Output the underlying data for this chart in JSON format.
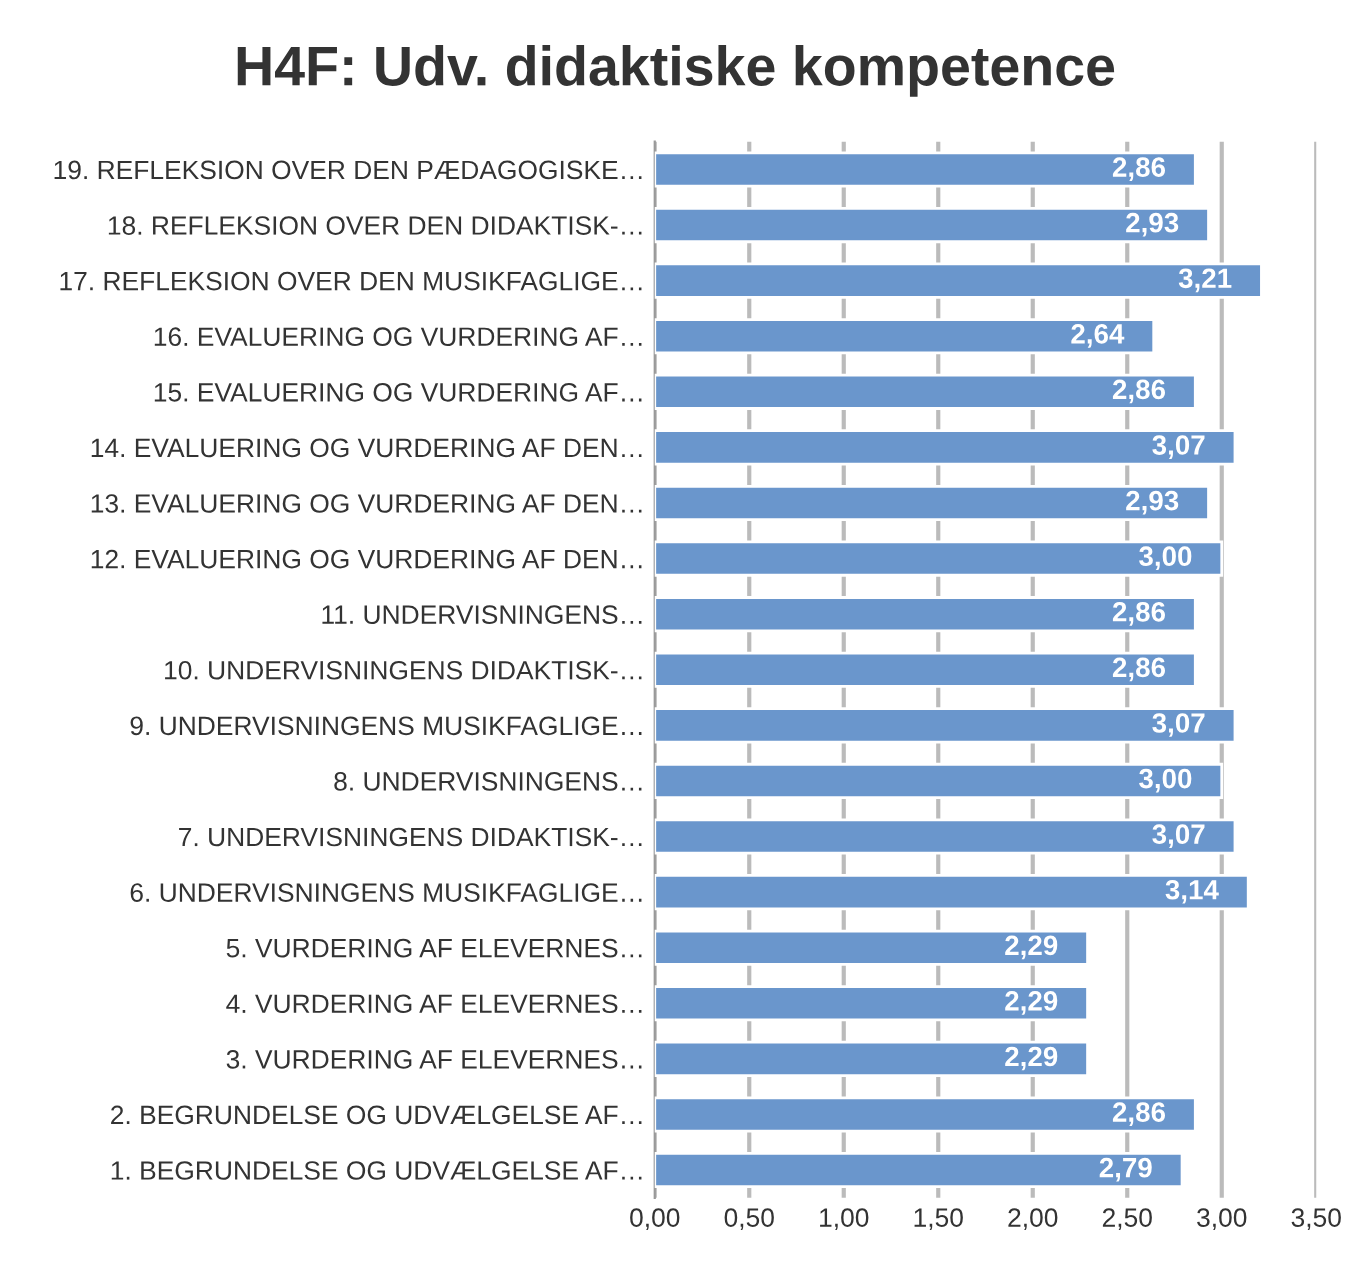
{
  "chart_data": {
    "type": "bar",
    "orientation": "horizontal",
    "title": "H4F: Udv. didaktiske kompetence",
    "categories": [
      "19. REFLEKSION OVER DEN PÆDAGOGISKE…",
      "18. REFLEKSION OVER DEN DIDAKTISK-…",
      "17. REFLEKSION OVER DEN MUSIKFAGLIGE…",
      "16. EVALUERING OG VURDERING AF…",
      "15. EVALUERING OG VURDERING AF…",
      "14. EVALUERING OG VURDERING AF DEN…",
      "13. EVALUERING OG VURDERING AF DEN…",
      "12. EVALUERING OG VURDERING AF DEN…",
      "11. UNDERVISNINGENS…",
      "10. UNDERVISNINGENS DIDAKTISK-…",
      "9. UNDERVISNINGENS MUSIKFAGLIGE…",
      "8. UNDERVISNINGENS…",
      "7. UNDERVISNINGENS DIDAKTISK-…",
      "6. UNDERVISNINGENS MUSIKFAGLIGE…",
      "5. VURDERING AF ELEVERNES…",
      "4. VURDERING AF ELEVERNES…",
      "3. VURDERING AF ELEVERNES…",
      "2. BEGRUNDELSE OG UDVÆLGELSE AF…",
      "1. BEGRUNDELSE OG UDVÆLGELSE AF…"
    ],
    "values": [
      2.86,
      2.93,
      3.21,
      2.64,
      2.86,
      3.07,
      2.93,
      3.0,
      2.86,
      2.86,
      3.07,
      3.0,
      3.07,
      3.14,
      2.29,
      2.29,
      2.29,
      2.86,
      2.79
    ],
    "value_labels": [
      "2,86",
      "2,93",
      "3,21",
      "2,64",
      "2,86",
      "3,07",
      "2,93",
      "3,00",
      "2,86",
      "2,86",
      "3,07",
      "3,00",
      "3,07",
      "3,14",
      "2,29",
      "2,29",
      "2,29",
      "2,86",
      "2,79"
    ],
    "color": "#6a96cc",
    "xlim": [
      0,
      3.5
    ],
    "xticks": [
      {
        "value": 0,
        "label": "0,00"
      },
      {
        "value": 0.5,
        "label": "0,50"
      },
      {
        "value": 1,
        "label": "1,00"
      },
      {
        "value": 1.5,
        "label": "1,50"
      },
      {
        "value": 2,
        "label": "2,00"
      },
      {
        "value": 2.5,
        "label": "2,50"
      },
      {
        "value": 3,
        "label": "3,00"
      },
      {
        "value": 3.5,
        "label": "3,50"
      }
    ],
    "grid": "x"
  }
}
